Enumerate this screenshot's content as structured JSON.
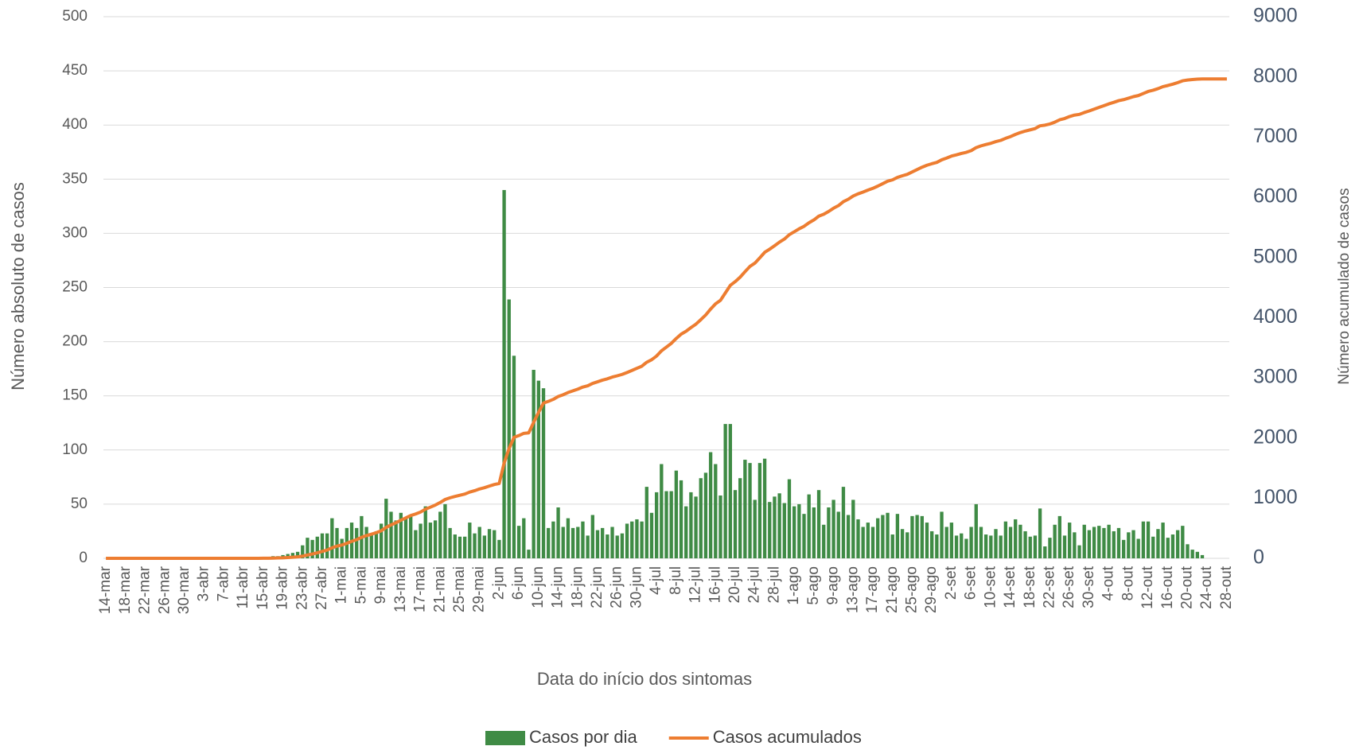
{
  "chart_data": {
    "type": "bar",
    "xlabel": "Data do início dos sintomas",
    "ylabel": "Número absoluto de casos",
    "y2label": "Número acumulado de casos",
    "categories": [
      "14-mar",
      null,
      null,
      null,
      "18-mar",
      null,
      null,
      null,
      "22-mar",
      null,
      null,
      null,
      "26-mar",
      null,
      null,
      null,
      "30-mar",
      null,
      null,
      null,
      "3-abr",
      null,
      null,
      null,
      "7-abr",
      null,
      null,
      null,
      "11-abr",
      null,
      null,
      null,
      "15-abr",
      null,
      null,
      null,
      "19-abr",
      null,
      null,
      null,
      "23-abr",
      null,
      null,
      null,
      "27-abr",
      null,
      null,
      null,
      "1-mai",
      null,
      null,
      null,
      "5-mai",
      null,
      null,
      null,
      "9-mai",
      null,
      null,
      null,
      "13-mai",
      null,
      null,
      null,
      "17-mai",
      null,
      null,
      null,
      "21-mai",
      null,
      null,
      null,
      "25-mai",
      null,
      null,
      null,
      "29-mai",
      null,
      null,
      null,
      "2-jun",
      null,
      null,
      null,
      "6-jun",
      null,
      null,
      null,
      "10-jun",
      null,
      null,
      null,
      "14-jun",
      null,
      null,
      null,
      "18-jun",
      null,
      null,
      null,
      "22-jun",
      null,
      null,
      null,
      "26-jun",
      null,
      null,
      null,
      "30-jun",
      null,
      null,
      null,
      "4-jul",
      null,
      null,
      null,
      "8-jul",
      null,
      null,
      null,
      "12-jul",
      null,
      null,
      null,
      "16-jul",
      null,
      null,
      null,
      "20-jul",
      null,
      null,
      null,
      "24-jul",
      null,
      null,
      null,
      "28-jul",
      null,
      null,
      null,
      "1-ago",
      null,
      null,
      null,
      "5-ago",
      null,
      null,
      null,
      "9-ago",
      null,
      null,
      null,
      "13-ago",
      null,
      null,
      null,
      "17-ago",
      null,
      null,
      null,
      "21-ago",
      null,
      null,
      null,
      "25-ago",
      null,
      null,
      null,
      "29-ago",
      null,
      null,
      null,
      "2-set",
      null,
      null,
      null,
      "6-set",
      null,
      null,
      null,
      "10-set",
      null,
      null,
      null,
      "14-set",
      null,
      null,
      null,
      "18-set",
      null,
      null,
      null,
      "22-set",
      null,
      null,
      null,
      "26-set",
      null,
      null,
      null,
      "30-set",
      null,
      null,
      null,
      "4-out",
      null,
      null,
      null,
      "8-out",
      null,
      null,
      null,
      "12-out",
      null,
      null,
      null,
      "16-out",
      null,
      null,
      null,
      "20-out",
      null,
      null,
      null,
      "24-out",
      null,
      null,
      null,
      "28-out"
    ],
    "series": [
      {
        "name": "Casos por dia",
        "type": "bar",
        "color": "#3f8b45",
        "values": [
          0,
          0,
          0,
          0,
          0,
          0,
          0,
          0,
          0,
          0,
          0,
          0,
          0,
          0,
          0,
          0,
          0,
          0,
          0,
          0,
          0,
          0,
          0,
          0,
          0,
          0,
          0,
          0,
          0,
          0,
          0,
          0,
          1,
          1,
          2,
          2,
          3,
          4,
          5,
          6,
          12,
          19,
          17,
          20,
          23,
          23,
          37,
          28,
          18,
          28,
          33,
          28,
          39,
          29,
          23,
          25,
          32,
          55,
          43,
          35,
          42,
          38,
          40,
          26,
          32,
          48,
          33,
          35,
          43,
          50,
          28,
          22,
          20,
          20,
          33,
          23,
          29,
          21,
          27,
          26,
          17,
          340,
          239,
          187,
          30,
          37,
          8,
          174,
          164,
          157,
          28,
          34,
          47,
          29,
          37,
          28,
          29,
          34,
          21,
          40,
          26,
          28,
          22,
          29,
          21,
          23,
          32,
          34,
          36,
          34,
          66,
          42,
          61,
          87,
          62,
          62,
          81,
          72,
          48,
          61,
          57,
          74,
          79,
          98,
          87,
          58,
          124,
          124,
          63,
          74,
          91,
          88,
          54,
          88,
          92,
          52,
          57,
          60,
          51,
          73,
          48,
          50,
          41,
          59,
          47,
          63,
          31,
          47,
          54,
          43,
          66,
          40,
          54,
          36,
          29,
          33,
          29,
          37,
          40,
          42,
          22,
          41,
          27,
          24,
          39,
          40,
          39,
          33,
          25,
          22,
          43,
          29,
          33,
          21,
          23,
          18,
          29,
          50,
          29,
          22,
          21,
          27,
          21,
          34,
          29,
          36,
          31,
          25,
          20,
          21,
          46,
          11,
          19,
          31,
          39,
          21,
          33,
          24,
          12,
          31,
          26,
          29,
          30,
          28,
          31,
          25,
          28,
          17,
          24,
          26,
          18,
          34,
          34,
          20,
          27,
          33,
          19,
          22,
          26,
          30,
          13,
          8,
          6,
          3,
          0,
          0,
          0,
          0,
          0
        ]
      },
      {
        "name": "Casos acumulados",
        "type": "line",
        "axis": "y2",
        "color": "#ed7d31",
        "values": [
          0,
          0,
          0,
          0,
          0,
          0,
          0,
          0,
          0,
          0,
          0,
          0,
          0,
          0,
          0,
          0,
          0,
          0,
          0,
          0,
          0,
          0,
          0,
          0,
          0,
          0,
          0,
          0,
          0,
          0,
          0,
          0,
          1,
          2,
          4,
          6,
          9,
          13,
          18,
          24,
          36,
          55,
          72,
          92,
          115,
          138,
          175,
          203,
          221,
          249,
          282,
          310,
          349,
          378,
          401,
          426,
          458,
          513,
          556,
          591,
          633,
          671,
          711,
          737,
          769,
          817,
          850,
          885,
          928,
          978,
          1006,
          1028,
          1048,
          1068,
          1101,
          1124,
          1153,
          1174,
          1201,
          1227,
          1244,
          1584,
          1823,
          2010,
          2040,
          2077,
          2085,
          2259,
          2423,
          2580,
          2608,
          2642,
          2689,
          2718,
          2755,
          2783,
          2812,
          2846,
          2867,
          2907,
          2933,
          2961,
          2983,
          3012,
          3033,
          3056,
          3088,
          3122,
          3158,
          3192,
          3258,
          3300,
          3361,
          3448,
          3510,
          3572,
          3653,
          3725,
          3773,
          3834,
          3891,
          3965,
          4044,
          4142,
          4229,
          4287,
          4411,
          4535,
          4598,
          4672,
          4763,
          4851,
          4905,
          4993,
          5085,
          5137,
          5194,
          5254,
          5305,
          5378,
          5426,
          5476,
          5517,
          5576,
          5623,
          5686,
          5717,
          5764,
          5818,
          5861,
          5927,
          5967,
          6021,
          6057,
          6086,
          6119,
          6148,
          6185,
          6225,
          6267,
          6289,
          6330,
          6357,
          6381,
          6420,
          6460,
          6499,
          6532,
          6557,
          6579,
          6622,
          6651,
          6684,
          6705,
          6728,
          6746,
          6775,
          6825,
          6854,
          6876,
          6897,
          6924,
          6945,
          6979,
          7008,
          7044,
          7075,
          7100,
          7120,
          7141,
          7187,
          7198,
          7217,
          7248,
          7287,
          7308,
          7341,
          7365,
          7377,
          7408,
          7434,
          7463,
          7493,
          7521,
          7552,
          7577,
          7605,
          7622,
          7646,
          7672,
          7690,
          7724,
          7758,
          7778,
          7805,
          7838,
          7857,
          7879,
          7905,
          7935,
          7948,
          7956,
          7962,
          7965,
          7965,
          7965,
          7965,
          7965,
          7965
        ]
      }
    ],
    "ylim": [
      0,
      500
    ],
    "yticks": [
      0,
      50,
      100,
      150,
      200,
      250,
      300,
      350,
      400,
      450,
      500
    ],
    "y2lim": [
      0,
      9000
    ],
    "y2ticks": [
      0,
      1000,
      2000,
      3000,
      4000,
      5000,
      6000,
      7000,
      8000,
      9000
    ],
    "grid": true,
    "legend": "bottom"
  }
}
